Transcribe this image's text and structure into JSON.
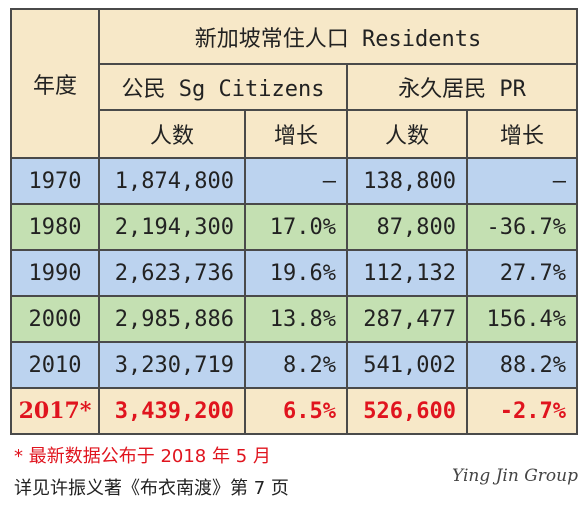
{
  "table": {
    "header": {
      "year": "年度",
      "residents": "新加坡常住人口 Residents",
      "citizens": "公民 Sg Citizens",
      "pr": "永久居民 PR",
      "count": "人数",
      "growth": "增长"
    },
    "rows": [
      {
        "year": "1970",
        "cit": "1,874,800",
        "cit_g": "–",
        "pr": "138,800",
        "pr_g": "–"
      },
      {
        "year": "1980",
        "cit": "2,194,300",
        "cit_g": "17.0%",
        "pr": "87,800",
        "pr_g": "-36.7%"
      },
      {
        "year": "1990",
        "cit": "2,623,736",
        "cit_g": "19.6%",
        "pr": "112,132",
        "pr_g": "27.7%"
      },
      {
        "year": "2000",
        "cit": "2,985,886",
        "cit_g": "13.8%",
        "pr": "287,477",
        "pr_g": "156.4%"
      },
      {
        "year": "2010",
        "cit": "3,230,719",
        "cit_g": "8.2%",
        "pr": "541,002",
        "pr_g": "88.2%"
      },
      {
        "year": "2017*",
        "cit": "3,439,200",
        "cit_g": "6.5%",
        "pr": "526,600",
        "pr_g": "-2.7%"
      }
    ]
  },
  "footnote": {
    "note": "* 最新数据公布于 2018 年 5 月",
    "source": "详见许振义著《布衣南渡》第 7 页"
  },
  "watermark": "Ying Jin Group",
  "colors": {
    "header_bg": "#f7e8c8",
    "blue_row": "#bcd3ef",
    "green_row": "#c4e0b2",
    "highlight_text": "#e0141e"
  }
}
